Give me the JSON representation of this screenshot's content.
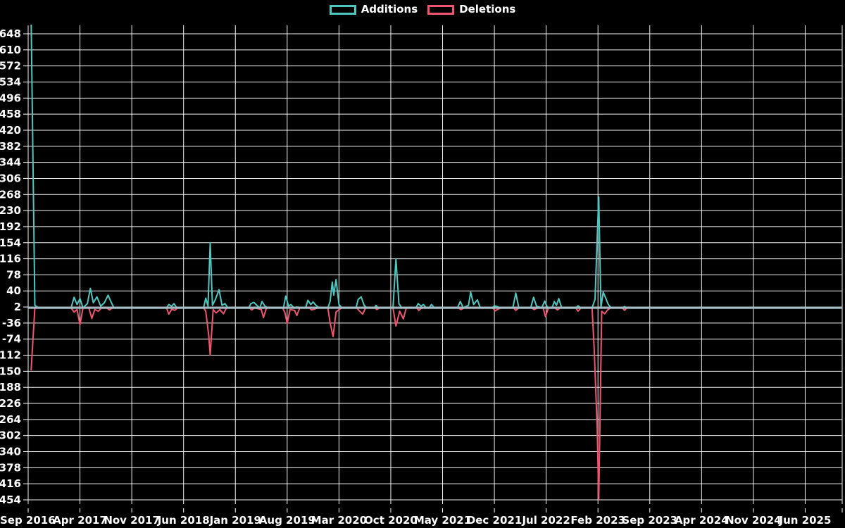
{
  "legend": {
    "items": [
      {
        "label": "Additions",
        "color": "#4dc8c0"
      },
      {
        "label": "Deletions",
        "color": "#f0546e"
      }
    ]
  },
  "chart_data": {
    "type": "line",
    "title": "",
    "xlabel": "",
    "ylabel": "",
    "grid": true,
    "legend_position": "top-center",
    "background_color": "#000000",
    "grid_color": "#ffffff",
    "zero_line_color": "#a8bec8",
    "text_color": "#ffffff",
    "x_unit": "months since Sep 2016",
    "x_range_months": [
      0,
      110
    ],
    "ylim": [
      -464,
      668
    ],
    "y_ticks": [
      648,
      610,
      572,
      534,
      496,
      458,
      420,
      382,
      344,
      306,
      268,
      230,
      192,
      154,
      116,
      78,
      40,
      2,
      -36,
      -74,
      -112,
      -150,
      -188,
      -226,
      -264,
      -302,
      -340,
      -378,
      -416,
      -454
    ],
    "x_tick_labels": [
      "Sep 2016",
      "Apr 2017",
      "Nov 2017",
      "Jun 2018",
      "Jan 2019",
      "Aug 2019",
      "Mar 2020",
      "Oct 2020",
      "May 2021",
      "Dec 2021",
      "Jul 2022",
      "Feb 2023",
      "Sep 2023",
      "Apr 2024",
      "Nov 2024",
      "Jun 2025"
    ],
    "x_tick_months": [
      0,
      7,
      14,
      21,
      28,
      35,
      42,
      49,
      56,
      63,
      70,
      77,
      84,
      91,
      98,
      105
    ],
    "edge_gridline_month": 110,
    "series": [
      {
        "name": "Additions",
        "color": "#4dc8c0",
        "points": [
          [
            0.4,
            686
          ],
          [
            0.9,
            6
          ],
          [
            1.4,
            0
          ],
          [
            5.8,
            0
          ],
          [
            6.2,
            25
          ],
          [
            6.6,
            8
          ],
          [
            7.0,
            22
          ],
          [
            7.4,
            0
          ],
          [
            8.0,
            10
          ],
          [
            8.4,
            46
          ],
          [
            8.8,
            12
          ],
          [
            9.3,
            26
          ],
          [
            9.8,
            4
          ],
          [
            10.3,
            12
          ],
          [
            10.8,
            30
          ],
          [
            11.2,
            14
          ],
          [
            11.6,
            0
          ],
          [
            18.7,
            0
          ],
          [
            19.0,
            8
          ],
          [
            19.4,
            4
          ],
          [
            19.7,
            10
          ],
          [
            20.1,
            0
          ],
          [
            23.7,
            0
          ],
          [
            24.0,
            23
          ],
          [
            24.3,
            4
          ],
          [
            24.6,
            154
          ],
          [
            24.9,
            6
          ],
          [
            25.3,
            20
          ],
          [
            25.8,
            43
          ],
          [
            26.2,
            6
          ],
          [
            26.6,
            10
          ],
          [
            27.0,
            0
          ],
          [
            29.8,
            0
          ],
          [
            30.1,
            10
          ],
          [
            30.5,
            13
          ],
          [
            30.9,
            6
          ],
          [
            31.3,
            0
          ],
          [
            31.6,
            15
          ],
          [
            32.0,
            4
          ],
          [
            32.4,
            0
          ],
          [
            34.5,
            0
          ],
          [
            34.8,
            28
          ],
          [
            35.2,
            4
          ],
          [
            35.5,
            8
          ],
          [
            35.9,
            0
          ],
          [
            36.3,
            2
          ],
          [
            37.5,
            0
          ],
          [
            37.8,
            18
          ],
          [
            38.2,
            8
          ],
          [
            38.5,
            14
          ],
          [
            38.9,
            6
          ],
          [
            39.3,
            0
          ],
          [
            40.5,
            0
          ],
          [
            40.8,
            15
          ],
          [
            41.1,
            61
          ],
          [
            41.3,
            30
          ],
          [
            41.6,
            67
          ],
          [
            42.0,
            8
          ],
          [
            42.4,
            0
          ],
          [
            44.3,
            0
          ],
          [
            44.6,
            20
          ],
          [
            45.0,
            26
          ],
          [
            45.4,
            6
          ],
          [
            45.8,
            0
          ],
          [
            46.8,
            0
          ],
          [
            47.0,
            6
          ],
          [
            47.3,
            0
          ],
          [
            49.3,
            0
          ],
          [
            49.7,
            116
          ],
          [
            50.1,
            10
          ],
          [
            50.5,
            0
          ],
          [
            52.4,
            0
          ],
          [
            52.7,
            10
          ],
          [
            53.1,
            4
          ],
          [
            53.4,
            8
          ],
          [
            53.8,
            0
          ],
          [
            54.2,
            0
          ],
          [
            54.5,
            8
          ],
          [
            54.9,
            0
          ],
          [
            58.0,
            0
          ],
          [
            58.4,
            15
          ],
          [
            58.8,
            0
          ],
          [
            59.5,
            6
          ],
          [
            59.8,
            37
          ],
          [
            60.2,
            8
          ],
          [
            60.7,
            19
          ],
          [
            61.1,
            0
          ],
          [
            62.7,
            0
          ],
          [
            63.0,
            5
          ],
          [
            63.4,
            3
          ],
          [
            63.8,
            0
          ],
          [
            65.5,
            0
          ],
          [
            65.9,
            35
          ],
          [
            66.3,
            0
          ],
          [
            67.9,
            0
          ],
          [
            68.3,
            25
          ],
          [
            68.7,
            4
          ],
          [
            69.4,
            0
          ],
          [
            69.8,
            16
          ],
          [
            70.2,
            0
          ],
          [
            70.8,
            0
          ],
          [
            71.1,
            15
          ],
          [
            71.4,
            6
          ],
          [
            71.7,
            22
          ],
          [
            72.1,
            0
          ],
          [
            74.0,
            0
          ],
          [
            74.3,
            5
          ],
          [
            74.7,
            0
          ],
          [
            76.2,
            0
          ],
          [
            76.6,
            20
          ],
          [
            76.9,
            165
          ],
          [
            77.1,
            262
          ],
          [
            77.4,
            0
          ],
          [
            77.7,
            37
          ],
          [
            78.0,
            25
          ],
          [
            78.4,
            8
          ],
          [
            78.8,
            0
          ],
          [
            80.3,
            0
          ],
          [
            80.6,
            3
          ],
          [
            80.9,
            0
          ],
          [
            110,
            0
          ]
        ]
      },
      {
        "name": "Deletions",
        "color": "#f0546e",
        "points": [
          [
            0.4,
            -148
          ],
          [
            0.9,
            0
          ],
          [
            5.8,
            0
          ],
          [
            6.2,
            -10
          ],
          [
            6.6,
            -4
          ],
          [
            7.0,
            -40
          ],
          [
            7.4,
            0
          ],
          [
            8.2,
            0
          ],
          [
            8.6,
            -25
          ],
          [
            9.0,
            -4
          ],
          [
            9.5,
            -8
          ],
          [
            9.9,
            0
          ],
          [
            10.6,
            0
          ],
          [
            11.0,
            -5
          ],
          [
            11.4,
            0
          ],
          [
            18.7,
            0
          ],
          [
            19.0,
            -15
          ],
          [
            19.4,
            -3
          ],
          [
            19.8,
            -6
          ],
          [
            20.2,
            0
          ],
          [
            23.7,
            0
          ],
          [
            24.0,
            -8
          ],
          [
            24.4,
            -65
          ],
          [
            24.6,
            -112
          ],
          [
            25.0,
            -4
          ],
          [
            25.4,
            -12
          ],
          [
            25.9,
            -4
          ],
          [
            26.4,
            -14
          ],
          [
            26.8,
            0
          ],
          [
            29.9,
            0
          ],
          [
            30.2,
            -5
          ],
          [
            30.6,
            0
          ],
          [
            31.5,
            -4
          ],
          [
            31.8,
            -23
          ],
          [
            32.2,
            0
          ],
          [
            34.4,
            0
          ],
          [
            34.7,
            -12
          ],
          [
            35.0,
            -37
          ],
          [
            35.4,
            -4
          ],
          [
            36.0,
            -6
          ],
          [
            36.3,
            -18
          ],
          [
            36.7,
            0
          ],
          [
            38.0,
            0
          ],
          [
            38.3,
            -5
          ],
          [
            38.7,
            -3
          ],
          [
            39.1,
            0
          ],
          [
            40.5,
            0
          ],
          [
            40.8,
            -35
          ],
          [
            41.2,
            -68
          ],
          [
            41.6,
            -10
          ],
          [
            42.0,
            -4
          ],
          [
            42.4,
            0
          ],
          [
            44.4,
            0
          ],
          [
            44.8,
            -8
          ],
          [
            45.2,
            -15
          ],
          [
            45.6,
            0
          ],
          [
            46.9,
            0
          ],
          [
            47.1,
            -4
          ],
          [
            47.5,
            0
          ],
          [
            49.3,
            0
          ],
          [
            49.7,
            -43
          ],
          [
            50.2,
            -8
          ],
          [
            50.7,
            -26
          ],
          [
            51.1,
            0
          ],
          [
            52.5,
            0
          ],
          [
            52.8,
            -6
          ],
          [
            53.2,
            0
          ],
          [
            58.1,
            0
          ],
          [
            58.5,
            -4
          ],
          [
            58.9,
            0
          ],
          [
            62.8,
            0
          ],
          [
            63.1,
            -7
          ],
          [
            63.5,
            -3
          ],
          [
            63.9,
            0
          ],
          [
            65.6,
            0
          ],
          [
            65.9,
            -6
          ],
          [
            66.3,
            0
          ],
          [
            68.0,
            0
          ],
          [
            68.4,
            -4
          ],
          [
            68.8,
            0
          ],
          [
            69.6,
            0
          ],
          [
            69.9,
            -21
          ],
          [
            70.3,
            0
          ],
          [
            71.2,
            0
          ],
          [
            71.5,
            -5
          ],
          [
            71.9,
            0
          ],
          [
            74.0,
            0
          ],
          [
            74.3,
            -8
          ],
          [
            74.7,
            0
          ],
          [
            76.2,
            0
          ],
          [
            76.5,
            -100
          ],
          [
            76.9,
            -285
          ],
          [
            77.1,
            -454
          ],
          [
            77.5,
            -8
          ],
          [
            77.9,
            -14
          ],
          [
            78.3,
            -5
          ],
          [
            78.7,
            0
          ],
          [
            80.3,
            0
          ],
          [
            80.6,
            -6
          ],
          [
            80.9,
            0
          ],
          [
            110,
            0
          ]
        ]
      }
    ]
  }
}
